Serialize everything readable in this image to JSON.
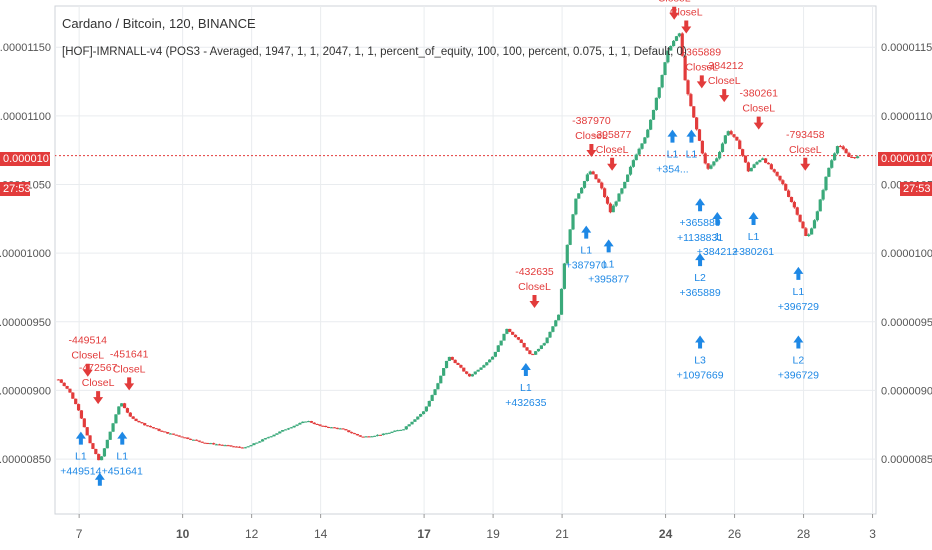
{
  "title": "Cardano / Bitcoin, 120, BINANCE",
  "study_label": "[HOF]-IMRNALL-v4 (POS3 - Averaged, 1947, 1, 1, 2047, 1, 1, percent_of_equity, 100, 100, percent, 0.075, 1, 1, Default, 0)",
  "price_tag": "0.00001071",
  "timer": "27:53",
  "colors": {
    "up": "#3aa97a",
    "down": "#e23b3b",
    "long": "#1e88e5",
    "close": "#e23b3b",
    "grid": "#e9ecef",
    "axis": "#555555"
  },
  "chart_data": {
    "type": "candlestick",
    "y_axis_labels": [
      "0.00001150",
      "0.00001100",
      "0.00001050",
      "0.00001000",
      "0.00000950",
      "0.00000900",
      "0.00000850"
    ],
    "y_ticks": [
      1.15e-05,
      1.1e-05,
      1.05e-05,
      1e-05,
      9.5e-06,
      9e-06,
      8.5e-06
    ],
    "ylim": [
      8.1e-06,
      1.18e-05
    ],
    "x_axis_labels": [
      "7",
      "10",
      "12",
      "14",
      "17",
      "19",
      "21",
      "24",
      "26",
      "28",
      "3"
    ],
    "x_tick_days": [
      7,
      10,
      12,
      14,
      17,
      19,
      21,
      24,
      26,
      28,
      30
    ],
    "xlim": [
      6.3,
      30.1
    ],
    "last_price": 1.071e-05,
    "close_path": [
      [
        6.4,
        9.08e-06
      ],
      [
        6.7,
        9e-06
      ],
      [
        7.0,
        8.85e-06
      ],
      [
        7.3,
        8.62e-06
      ],
      [
        7.6,
        8.48e-06
      ],
      [
        7.9,
        8.7e-06
      ],
      [
        8.2,
        8.92e-06
      ],
      [
        8.5,
        8.8e-06
      ],
      [
        8.9,
        8.75e-06
      ],
      [
        9.4,
        8.7e-06
      ],
      [
        10.0,
        8.66e-06
      ],
      [
        10.6,
        8.62e-06
      ],
      [
        11.2,
        8.6e-06
      ],
      [
        11.8,
        8.58e-06
      ],
      [
        12.4,
        8.65e-06
      ],
      [
        13.0,
        8.72e-06
      ],
      [
        13.6,
        8.78e-06
      ],
      [
        14.0,
        8.74e-06
      ],
      [
        14.6,
        8.72e-06
      ],
      [
        15.2,
        8.66e-06
      ],
      [
        15.8,
        8.68e-06
      ],
      [
        16.4,
        8.72e-06
      ],
      [
        17.0,
        8.85e-06
      ],
      [
        17.4,
        9.05e-06
      ],
      [
        17.7,
        9.25e-06
      ],
      [
        18.0,
        9.18e-06
      ],
      [
        18.3,
        9.1e-06
      ],
      [
        18.7,
        9.18e-06
      ],
      [
        19.0,
        9.25e-06
      ],
      [
        19.4,
        9.45e-06
      ],
      [
        19.8,
        9.35e-06
      ],
      [
        20.1,
        9.25e-06
      ],
      [
        20.5,
        9.35e-06
      ],
      [
        20.9,
        9.55e-06
      ],
      [
        21.1,
        1e-05
      ],
      [
        21.4,
        1.04e-05
      ],
      [
        21.8,
        1.06e-05
      ],
      [
        22.1,
        1.05e-05
      ],
      [
        22.4,
        1.03e-05
      ],
      [
        22.8,
        1.05e-05
      ],
      [
        23.1,
        1.07e-05
      ],
      [
        23.5,
        1.09e-05
      ],
      [
        23.8,
        1.12e-05
      ],
      [
        24.1,
        1.15e-05
      ],
      [
        24.4,
        1.16e-05
      ],
      [
        24.6,
        1.12e-05
      ],
      [
        24.9,
        1.09e-05
      ],
      [
        25.2,
        1.06e-05
      ],
      [
        25.5,
        1.07e-05
      ],
      [
        25.8,
        1.09e-05
      ],
      [
        26.1,
        1.08e-05
      ],
      [
        26.4,
        1.06e-05
      ],
      [
        26.8,
        1.07e-05
      ],
      [
        27.1,
        1.06e-05
      ],
      [
        27.4,
        1.05e-05
      ],
      [
        27.8,
        1.03e-05
      ],
      [
        28.1,
        1.01e-05
      ],
      [
        28.4,
        1.03e-05
      ],
      [
        28.7,
        1.06e-05
      ],
      [
        29.0,
        1.08e-05
      ],
      [
        29.3,
        1.07e-05
      ],
      [
        29.6,
        1.07e-05
      ]
    ],
    "trade_markers": [
      {
        "type": "entry",
        "day": 7.05,
        "price": 8.7e-06,
        "labels": [
          "L1",
          "+449514"
        ]
      },
      {
        "type": "exit",
        "day": 7.25,
        "price": 9.1e-06,
        "labels": [
          "-449514",
          "CloseL"
        ]
      },
      {
        "type": "exit",
        "day": 7.55,
        "price": 8.9e-06,
        "labels": [
          "-472567",
          "CloseL"
        ]
      },
      {
        "type": "entry",
        "day": 7.6,
        "price": 8.4e-06,
        "labels": []
      },
      {
        "type": "entry",
        "day": 8.25,
        "price": 8.7e-06,
        "labels": [
          "L1",
          "+451641"
        ]
      },
      {
        "type": "exit",
        "day": 8.45,
        "price": 9e-06,
        "labels": [
          "-451641",
          "CloseL"
        ]
      },
      {
        "type": "entry",
        "day": 19.95,
        "price": 9.2e-06,
        "labels": [
          "L1",
          "+432635"
        ]
      },
      {
        "type": "exit",
        "day": 20.2,
        "price": 9.6e-06,
        "labels": [
          "-432635",
          "CloseL"
        ]
      },
      {
        "type": "entry",
        "day": 21.7,
        "price": 1.02e-05,
        "labels": [
          "L1",
          "+387970"
        ]
      },
      {
        "type": "exit",
        "day": 21.85,
        "price": 1.07e-05,
        "labels": [
          "-387970",
          "CloseL"
        ]
      },
      {
        "type": "entry",
        "day": 22.35,
        "price": 1.01e-05,
        "labels": [
          "L1",
          "+395877"
        ]
      },
      {
        "type": "exit",
        "day": 22.45,
        "price": 1.06e-05,
        "labels": [
          "-395877",
          "CloseL"
        ]
      },
      {
        "type": "exit",
        "day": 24.25,
        "price": 1.17e-05,
        "labels": [
          "CloseL"
        ]
      },
      {
        "type": "exit",
        "day": 24.6,
        "price": 1.16e-05,
        "labels": [
          "CloseL"
        ]
      },
      {
        "type": "entry",
        "day": 24.2,
        "price": 1.09e-05,
        "labels": [
          "L1",
          "+354..."
        ]
      },
      {
        "type": "exit",
        "day": 25.05,
        "price": 1.12e-05,
        "labels": [
          "-365889",
          "CloseL"
        ]
      },
      {
        "type": "entry",
        "day": 24.75,
        "price": 1.09e-05,
        "labels": [
          "L1"
        ]
      },
      {
        "type": "entry",
        "day": 25.0,
        "price": 1.04e-05,
        "labels": [
          "+365889",
          "+1138831"
        ]
      },
      {
        "type": "entry",
        "day": 25.0,
        "price": 1e-05,
        "labels": [
          "L2",
          "+365889"
        ]
      },
      {
        "type": "entry",
        "day": 25.0,
        "price": 9.4e-06,
        "labels": [
          "L3",
          "+1097669"
        ]
      },
      {
        "type": "entry",
        "day": 25.5,
        "price": 1.03e-05,
        "labels": [
          "1",
          "+384212"
        ]
      },
      {
        "type": "exit",
        "day": 25.7,
        "price": 1.11e-05,
        "labels": [
          "-384212",
          "CloseL"
        ]
      },
      {
        "type": "entry",
        "day": 26.55,
        "price": 1.03e-05,
        "labels": [
          "L1",
          "+380261"
        ]
      },
      {
        "type": "exit",
        "day": 26.7,
        "price": 1.09e-05,
        "labels": [
          "-380261",
          "CloseL"
        ]
      },
      {
        "type": "entry",
        "day": 27.85,
        "price": 9.9e-06,
        "labels": [
          "L1",
          "+396729"
        ]
      },
      {
        "type": "entry",
        "day": 27.85,
        "price": 9.4e-06,
        "labels": [
          "L2",
          "+396729"
        ]
      },
      {
        "type": "exit",
        "day": 28.05,
        "price": 1.06e-05,
        "labels": [
          "-793458",
          "CloseL"
        ]
      }
    ],
    "grid": true
  }
}
